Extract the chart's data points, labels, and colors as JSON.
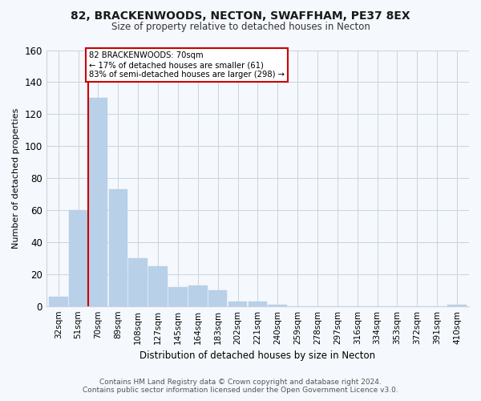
{
  "title": "82, BRACKENWOODS, NECTON, SWAFFHAM, PE37 8EX",
  "subtitle": "Size of property relative to detached houses in Necton",
  "xlabel": "Distribution of detached houses by size in Necton",
  "ylabel": "Number of detached properties",
  "bar_labels": [
    "32sqm",
    "51sqm",
    "70sqm",
    "89sqm",
    "108sqm",
    "127sqm",
    "145sqm",
    "164sqm",
    "183sqm",
    "202sqm",
    "221sqm",
    "240sqm",
    "259sqm",
    "278sqm",
    "297sqm",
    "316sqm",
    "334sqm",
    "353sqm",
    "372sqm",
    "391sqm",
    "410sqm"
  ],
  "bar_values": [
    6,
    60,
    130,
    73,
    30,
    25,
    12,
    13,
    10,
    3,
    3,
    1,
    0,
    0,
    0,
    0,
    0,
    0,
    0,
    0,
    1
  ],
  "highlight_bar_index": 2,
  "bar_color": "#b8d0e8",
  "highlight_line_color": "#cc0000",
  "ylim": [
    0,
    160
  ],
  "yticks": [
    0,
    20,
    40,
    60,
    80,
    100,
    120,
    140,
    160
  ],
  "annotation_title": "82 BRACKENWOODS: 70sqm",
  "annotation_line1": "← 17% of detached houses are smaller (61)",
  "annotation_line2": "83% of semi-detached houses are larger (298) →",
  "footer_line1": "Contains HM Land Registry data © Crown copyright and database right 2024.",
  "footer_line2": "Contains public sector information licensed under the Open Government Licence v3.0.",
  "background_color": "#f5f8fc",
  "plot_bg_color": "#f5f8fc",
  "grid_color": "#c8d4e0",
  "spine_color": "#c8d4e0"
}
